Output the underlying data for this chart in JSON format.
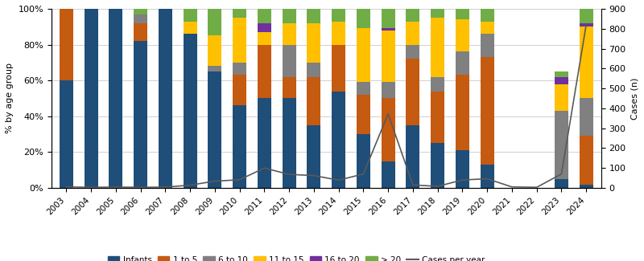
{
  "years": [
    2003,
    2004,
    2005,
    2006,
    2007,
    2008,
    2009,
    2010,
    2011,
    2012,
    2013,
    2014,
    2015,
    2016,
    2017,
    2018,
    2019,
    2020,
    2021,
    2022,
    2023,
    2024
  ],
  "infants": [
    0.6,
    1.0,
    1.0,
    0.82,
    1.0,
    0.86,
    0.65,
    0.46,
    0.5,
    0.5,
    0.35,
    0.54,
    0.3,
    0.15,
    0.35,
    0.25,
    0.21,
    0.13,
    0.0,
    0.0,
    0.05,
    0.02
  ],
  "one_to_5": [
    0.4,
    0.0,
    0.0,
    0.1,
    0.0,
    0.0,
    0.0,
    0.17,
    0.3,
    0.12,
    0.27,
    0.26,
    0.22,
    0.35,
    0.37,
    0.29,
    0.42,
    0.6,
    0.0,
    0.0,
    0.0,
    0.27
  ],
  "six_to_10": [
    0.0,
    0.0,
    0.0,
    0.05,
    0.0,
    0.0,
    0.03,
    0.07,
    0.0,
    0.18,
    0.08,
    0.0,
    0.07,
    0.09,
    0.08,
    0.08,
    0.13,
    0.13,
    0.0,
    0.0,
    0.38,
    0.21
  ],
  "eleven_to_15": [
    0.0,
    0.0,
    0.0,
    0.0,
    0.0,
    0.07,
    0.17,
    0.25,
    0.07,
    0.12,
    0.22,
    0.13,
    0.3,
    0.29,
    0.13,
    0.33,
    0.18,
    0.07,
    0.0,
    0.0,
    0.15,
    0.4
  ],
  "sixteen_to_20": [
    0.0,
    0.0,
    0.0,
    0.0,
    0.0,
    0.0,
    0.0,
    0.0,
    0.05,
    0.0,
    0.0,
    0.0,
    0.0,
    0.01,
    0.0,
    0.0,
    0.0,
    0.0,
    0.0,
    0.0,
    0.04,
    0.02
  ],
  "gt_20": [
    0.0,
    0.0,
    0.0,
    0.03,
    0.0,
    0.07,
    0.15,
    0.05,
    0.08,
    0.08,
    0.08,
    0.07,
    0.11,
    0.11,
    0.07,
    0.05,
    0.06,
    0.07,
    0.0,
    0.0,
    0.03,
    0.08
  ],
  "cases_per_year": [
    5,
    3,
    4,
    3,
    4,
    14,
    34,
    41,
    100,
    68,
    62,
    39,
    70,
    372,
    15,
    8,
    40,
    46,
    5,
    3,
    70,
    820
  ],
  "colors": {
    "infants": "#1f4e79",
    "one_to_5": "#c55a11",
    "six_to_10": "#808080",
    "eleven_to_15": "#ffc000",
    "sixteen_to_20": "#7030a0",
    "gt_20": "#70ad47"
  },
  "line_color": "#595959",
  "ylabel_left": "% by age group",
  "ylabel_right": "Cases (n)",
  "right_yticks": [
    0,
    100,
    200,
    300,
    400,
    500,
    600,
    700,
    800,
    900
  ],
  "left_yticks": [
    0.0,
    0.2,
    0.4,
    0.6,
    0.8,
    1.0
  ],
  "left_yticklabels": [
    "0%",
    "20%",
    "40%",
    "60%",
    "80%",
    "100%"
  ],
  "legend_labels": [
    "Infants",
    "1 to 5",
    "6 to 10",
    "11 to 15",
    "16 to 20",
    "> 20",
    "Cases per year"
  ]
}
